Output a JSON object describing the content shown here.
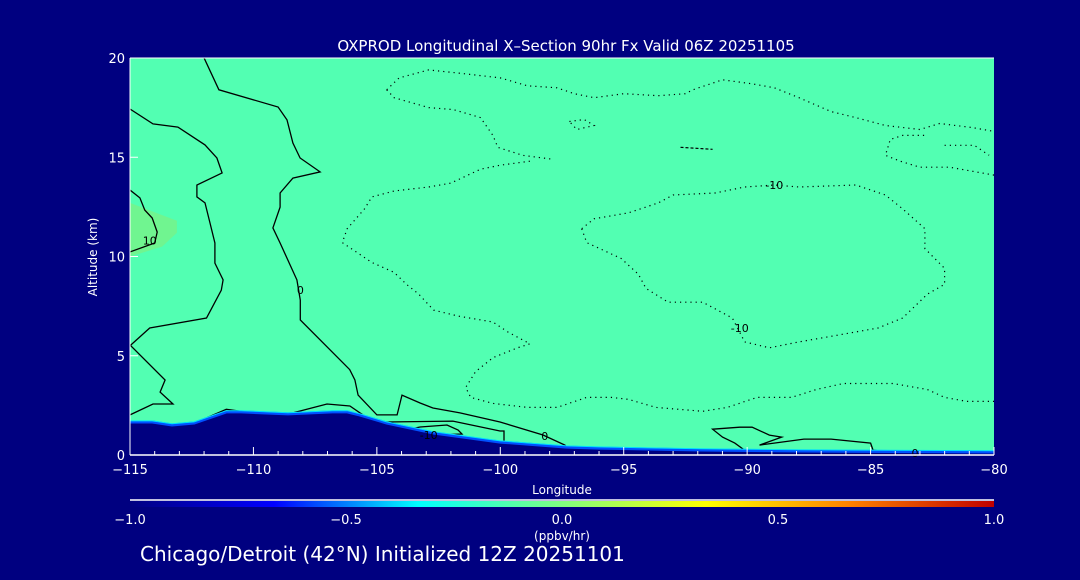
{
  "chart_data": {
    "type": "contour",
    "title": "OXPROD Longitudinal X–Section 90hr  Fx Valid 06Z 20251105",
    "xlabel": "Longitude",
    "ylabel": "Altitude (km)",
    "xlim": [
      -115,
      -80
    ],
    "ylim": [
      0,
      20
    ],
    "xticks": [
      -115,
      -110,
      -105,
      -100,
      -95,
      -90,
      -85,
      -80
    ],
    "xtick_labels": [
      "−115",
      "−110",
      "−105",
      "−100",
      "−95",
      "−90",
      "−85",
      "−80"
    ],
    "yticks": [
      0,
      5,
      10,
      15,
      20
    ],
    "ytick_labels": [
      "0",
      "5",
      "10",
      "15",
      "20"
    ],
    "background_value_color": "#52ffb2",
    "terrain_color": "#000080",
    "terrain_surface_km": [
      [
        -115,
        1.66
      ],
      [
        -114.1,
        1.66
      ],
      [
        -113.3,
        1.51
      ],
      [
        -112.4,
        1.61
      ],
      [
        -111.1,
        2.17
      ],
      [
        -110.5,
        2.17
      ],
      [
        -108.6,
        2.07
      ],
      [
        -106.8,
        2.17
      ],
      [
        -106.2,
        2.17
      ],
      [
        -105.7,
        2.02
      ],
      [
        -104.6,
        1.61
      ],
      [
        -102.7,
        1.11
      ],
      [
        -100.0,
        0.65
      ],
      [
        -97.3,
        0.4
      ],
      [
        -96.0,
        0.35
      ],
      [
        -91.9,
        0.25
      ],
      [
        -87.9,
        0.2
      ],
      [
        -80,
        0.15
      ]
    ],
    "shaded_regions": [
      {
        "value_color": "#70f590",
        "points": [
          [
            -115,
            12.7
          ],
          [
            -113.1,
            11.8
          ],
          [
            -113.1,
            11.2
          ],
          [
            -113.7,
            10.5
          ],
          [
            -115,
            10.0
          ]
        ]
      }
    ],
    "contours": [
      {
        "level": 0,
        "style": "solid",
        "points": [
          [
            -115,
            17.43
          ],
          [
            -114.07,
            16.68
          ],
          [
            -113.06,
            16.52
          ],
          [
            -111.96,
            15.62
          ],
          [
            -111.48,
            14.96
          ],
          [
            -111.27,
            14.21
          ],
          [
            -112.29,
            13.6
          ],
          [
            -112.29,
            13.0
          ],
          [
            -111.96,
            12.7
          ],
          [
            -111.76,
            11.69
          ],
          [
            -111.56,
            10.68
          ],
          [
            -111.56,
            9.67
          ],
          [
            -111.23,
            8.82
          ],
          [
            -111.3,
            8.3
          ],
          [
            -111.9,
            6.9
          ],
          [
            -114.2,
            6.4
          ],
          [
            -115,
            5.5
          ]
        ]
      },
      {
        "level": 0,
        "style": "solid",
        "points": [
          [
            -115,
            5.54
          ],
          [
            -113.58,
            3.78
          ],
          [
            -113.78,
            3.17
          ],
          [
            -113.26,
            2.57
          ],
          [
            -114.07,
            2.57
          ],
          [
            -115,
            2.02
          ]
        ]
      },
      {
        "level": 0,
        "style": "solid",
        "points": [
          [
            -112,
            20
          ],
          [
            -111.4,
            18.4
          ],
          [
            -109.0,
            17.53
          ],
          [
            -108.64,
            16.88
          ],
          [
            -108.4,
            15.72
          ],
          [
            -108.11,
            14.96
          ],
          [
            -107.3,
            14.26
          ],
          [
            -108.4,
            13.95
          ],
          [
            -108.92,
            13.2
          ],
          [
            -108.92,
            12.49
          ],
          [
            -109.21,
            11.44
          ],
          [
            -108.92,
            10.68
          ],
          [
            -108.24,
            8.82
          ],
          [
            -108.1,
            7.8
          ],
          [
            -108.1,
            6.8
          ],
          [
            -106.1,
            4.3
          ],
          [
            -105.89,
            3.78
          ],
          [
            -105.76,
            3.02
          ],
          [
            -105.0,
            2.02
          ],
          [
            -104.18,
            2.02
          ],
          [
            -103.98,
            3.02
          ],
          [
            -103.25,
            2.62
          ],
          [
            -102.73,
            2.37
          ],
          [
            -101.63,
            2.12
          ],
          [
            -100.01,
            1.66
          ],
          [
            -98.27,
            1.01
          ],
          [
            -97.38,
            0.5
          ],
          [
            -97.3,
            0.35
          ]
        ]
      },
      {
        "level": 0,
        "style": "solid",
        "points": [
          [
            -112.4,
            1.6
          ],
          [
            -111.1,
            2.3
          ],
          [
            -110.5,
            2.2
          ],
          [
            -110.5,
            2.0
          ]
        ]
      },
      {
        "level": 0,
        "style": "solid",
        "points": [
          [
            -108.72,
            1.91
          ],
          [
            -108.4,
            2.12
          ],
          [
            -107.02,
            2.57
          ],
          [
            -106.09,
            2.47
          ],
          [
            -105.56,
            2.02
          ],
          [
            -105.48,
            1.86
          ]
        ]
      },
      {
        "level": 0,
        "style": "solid",
        "points": [
          [
            -104.63,
            1.46
          ],
          [
            -104.63,
            1.66
          ],
          [
            -101.92,
            1.71
          ],
          [
            -100.01,
            1.21
          ],
          [
            -99.85,
            1.21
          ],
          [
            -99.85,
            0.71
          ]
        ]
      },
      {
        "level": -10,
        "style": "solid",
        "points": [
          [
            -103.66,
            1.31
          ],
          [
            -103.25,
            1.41
          ],
          [
            -102.16,
            1.51
          ],
          [
            -101.71,
            1.26
          ],
          [
            -101.55,
            1.06
          ],
          [
            -102.73,
            1.01
          ],
          [
            -103.37,
            1.16
          ]
        ]
      },
      {
        "level": 0,
        "style": "solid",
        "points": [
          [
            -90.0,
            0.15
          ],
          [
            -90.5,
            0.6
          ],
          [
            -91.0,
            0.9
          ],
          [
            -91.4,
            1.3
          ],
          [
            -90.3,
            1.4
          ],
          [
            -89.8,
            1.4
          ],
          [
            -89.1,
            1.0
          ],
          [
            -88.6,
            0.9
          ],
          [
            -89.5,
            0.5
          ],
          [
            -87.7,
            0.8
          ],
          [
            -86.6,
            0.8
          ],
          [
            -85.0,
            0.6
          ],
          [
            -84.9,
            0.25
          ],
          [
            -84.1,
            0.1
          ]
        ]
      },
      {
        "level": 10,
        "style": "solid",
        "points": [
          [
            -115,
            13.35
          ],
          [
            -114.6,
            12.95
          ],
          [
            -114.4,
            12.34
          ],
          [
            -114.1,
            11.94
          ],
          [
            -113.9,
            11.23
          ],
          [
            -114.0,
            10.68
          ],
          [
            -115,
            10.23
          ]
        ]
      },
      {
        "level": -10,
        "style": "dotted",
        "points": [
          [
            -104.6,
            18.4
          ],
          [
            -104.1,
            19.0
          ],
          [
            -102.9,
            19.4
          ],
          [
            -101.4,
            19.2
          ],
          [
            -100.0,
            19.0
          ],
          [
            -98.9,
            18.6
          ],
          [
            -97.7,
            18.5
          ],
          [
            -97.0,
            18.2
          ],
          [
            -96.2,
            18.0
          ],
          [
            -95.0,
            18.2
          ],
          [
            -93.6,
            18.1
          ],
          [
            -92.5,
            18.2
          ],
          [
            -92.2,
            18.4
          ],
          [
            -91.0,
            18.9
          ],
          [
            -89.8,
            18.7
          ],
          [
            -88.9,
            18.5
          ],
          [
            -87.9,
            18.0
          ],
          [
            -86.6,
            17.3
          ],
          [
            -85.6,
            17.0
          ],
          [
            -84.4,
            16.6
          ],
          [
            -83.7,
            16.5
          ],
          [
            -83.0,
            16.4
          ],
          [
            -82.2,
            16.7
          ],
          [
            -80.9,
            16.5
          ],
          [
            -80,
            16.3
          ]
        ]
      },
      {
        "level": -10,
        "style": "dotted",
        "points": [
          [
            -104.6,
            18.4
          ],
          [
            -104.3,
            18.0
          ],
          [
            -102.9,
            17.5
          ],
          [
            -101.9,
            17.4
          ],
          [
            -100.8,
            17.0
          ],
          [
            -100.3,
            16.1
          ],
          [
            -100.1,
            15.5
          ],
          [
            -99.1,
            15.1
          ],
          [
            -97.9,
            14.9
          ]
        ]
      },
      {
        "level": -10,
        "style": "dotted",
        "points": [
          [
            -98.8,
            14.8
          ],
          [
            -100.0,
            14.6
          ],
          [
            -100.8,
            14.4
          ],
          [
            -102.0,
            13.7
          ],
          [
            -102.9,
            13.5
          ],
          [
            -104.3,
            13.3
          ],
          [
            -105.2,
            13.0
          ],
          [
            -105.5,
            12.4
          ],
          [
            -106.2,
            11.4
          ],
          [
            -106.4,
            10.7
          ],
          [
            -105.2,
            9.7
          ],
          [
            -104.3,
            9.2
          ],
          [
            -103.8,
            8.6
          ],
          [
            -103.3,
            8.1
          ],
          [
            -102.7,
            7.3
          ],
          [
            -101.7,
            7.0
          ],
          [
            -100.3,
            6.7
          ],
          [
            -99.7,
            6.2
          ],
          [
            -98.8,
            5.6
          ],
          [
            -99.3,
            5.4
          ],
          [
            -100.3,
            4.9
          ],
          [
            -101.0,
            4.2
          ],
          [
            -101.4,
            3.4
          ],
          [
            -101.2,
            2.9
          ],
          [
            -100.3,
            2.6
          ],
          [
            -98.9,
            2.4
          ],
          [
            -97.7,
            2.4
          ],
          [
            -96.5,
            2.9
          ],
          [
            -95.5,
            2.9
          ],
          [
            -94.8,
            2.8
          ],
          [
            -93.7,
            2.4
          ],
          [
            -91.8,
            2.2
          ],
          [
            -90.8,
            2.4
          ],
          [
            -89.6,
            2.9
          ],
          [
            -88.2,
            2.9
          ],
          [
            -87.2,
            3.3
          ],
          [
            -86.1,
            3.6
          ],
          [
            -84.1,
            3.6
          ],
          [
            -82.7,
            3.3
          ],
          [
            -82.0,
            2.9
          ],
          [
            -81.1,
            2.7
          ],
          [
            -80,
            2.7
          ]
        ]
      },
      {
        "level": -10,
        "style": "dotted",
        "points": [
          [
            -96.7,
            11.4
          ],
          [
            -96.2,
            11.9
          ],
          [
            -94.8,
            12.2
          ],
          [
            -93.6,
            12.7
          ],
          [
            -93.0,
            13.1
          ],
          [
            -91.3,
            13.2
          ],
          [
            -90.1,
            13.5
          ],
          [
            -88.9,
            13.6
          ],
          [
            -87.9,
            13.5
          ],
          [
            -85.6,
            13.6
          ],
          [
            -84.4,
            13.1
          ],
          [
            -83.7,
            12.4
          ],
          [
            -82.8,
            11.4
          ],
          [
            -82.8,
            10.4
          ],
          [
            -82.0,
            9.4
          ],
          [
            -82.0,
            8.6
          ],
          [
            -82.7,
            8.1
          ],
          [
            -83.7,
            6.9
          ],
          [
            -84.7,
            6.4
          ],
          [
            -86.5,
            6.0
          ],
          [
            -87.9,
            5.7
          ],
          [
            -89.1,
            5.4
          ],
          [
            -90.1,
            5.7
          ],
          [
            -90.6,
            6.9
          ],
          [
            -91.8,
            7.7
          ],
          [
            -93.2,
            7.7
          ],
          [
            -94.1,
            8.4
          ],
          [
            -94.4,
            9.1
          ],
          [
            -95.1,
            9.9
          ],
          [
            -96.5,
            10.7
          ],
          [
            -96.7,
            11.4
          ]
        ]
      },
      {
        "level": -10,
        "style": "dotted",
        "points": [
          [
            -80,
            14.1
          ],
          [
            -81.8,
            14.5
          ],
          [
            -83.0,
            14.5
          ],
          [
            -83.8,
            14.8
          ],
          [
            -84.4,
            15.1
          ],
          [
            -84.2,
            15.9
          ],
          [
            -83.7,
            16.1
          ],
          [
            -82.7,
            16.1
          ]
        ]
      },
      {
        "level": -10,
        "style": "dotted",
        "points": [
          [
            -82.0,
            15.6
          ],
          [
            -80.8,
            15.6
          ],
          [
            -80.2,
            15.1
          ]
        ]
      },
      {
        "level": -10,
        "style": "dotted",
        "points": [
          [
            -97.2,
            16.8
          ],
          [
            -96.6,
            16.9
          ],
          [
            -96.2,
            16.6
          ],
          [
            -96.9,
            16.4
          ],
          [
            -97.2,
            16.8
          ]
        ]
      },
      {
        "level": -10,
        "style": "dashed",
        "points": [
          [
            -92.7,
            15.5
          ],
          [
            -91.4,
            15.4
          ]
        ]
      }
    ],
    "contour_labels": [
      {
        "text": "0",
        "lon": -108.1,
        "alt": 8.3
      },
      {
        "text": "0",
        "lon": -98.2,
        "alt": 0.95
      },
      {
        "text": "0",
        "lon": -83.2,
        "alt": 0.1
      },
      {
        "text": "-10",
        "lon": -88.9,
        "alt": 13.6
      },
      {
        "text": "-10",
        "lon": -90.3,
        "alt": 6.4
      },
      {
        "text": "-10",
        "lon": -102.9,
        "alt": 1.0
      },
      {
        "text": "10",
        "lon": -114.2,
        "alt": 10.8
      }
    ],
    "colorbar": {
      "range": [
        -1.0,
        1.0
      ],
      "ticks": [
        -1.0,
        -0.5,
        0.0,
        0.5,
        1.0
      ],
      "tick_labels": [
        "−1.0",
        "−0.5",
        "0.0",
        "0.5",
        "1.0"
      ],
      "units": "(ppbv/hr)",
      "colors": [
        "#000080",
        "#0000ff",
        "#00ffff",
        "#80ff80",
        "#ffff00",
        "#ff8000",
        "#c00000"
      ]
    }
  },
  "footer": "Chicago/Detroit (42°N) Initialized 12Z 20251101"
}
